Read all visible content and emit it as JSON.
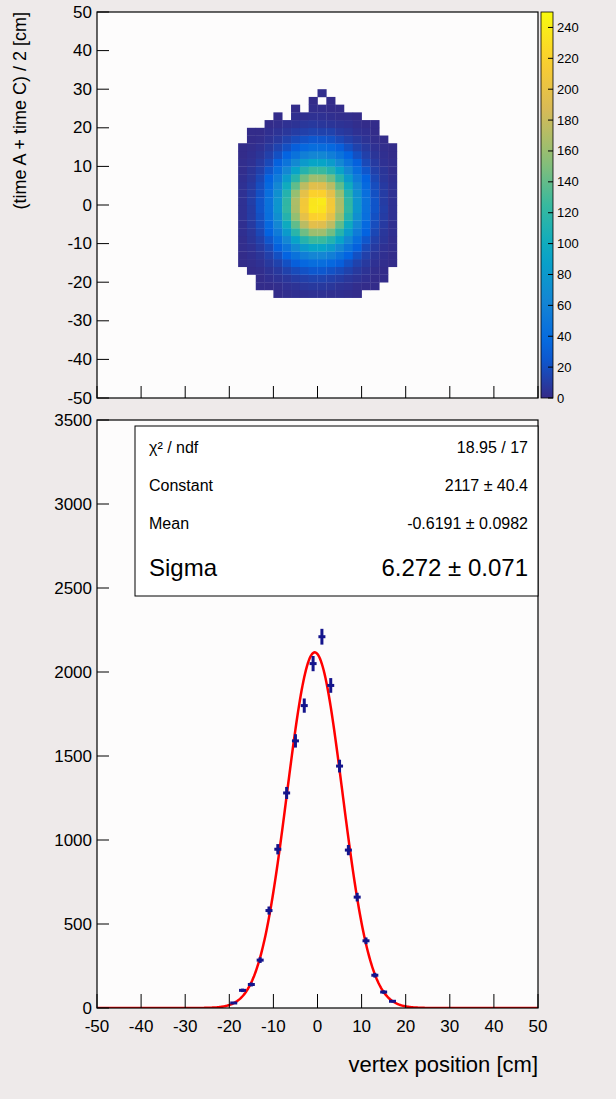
{
  "chart_data": [
    {
      "type": "heatmap",
      "ylabel": "(time A + time C) / 2 [cm]",
      "xlim": [
        -50,
        50
      ],
      "ylim": [
        -50,
        50
      ],
      "xticks": [
        -50,
        -40,
        -30,
        -20,
        -10,
        0,
        10,
        20,
        30,
        40,
        50
      ],
      "yticks": [
        -50,
        -40,
        -30,
        -20,
        -10,
        0,
        10,
        20,
        30,
        40,
        50
      ],
      "tick_labels": "y",
      "x_edges": [
        -18,
        -16,
        -14,
        -12,
        -10,
        -8,
        -6,
        -4,
        -2,
        0,
        2,
        4,
        6,
        8,
        10,
        12,
        14,
        16,
        18
      ],
      "y_edges": [
        -24,
        -22,
        -20,
        -18,
        -16,
        -14,
        -12,
        -10,
        -8,
        -6,
        -4,
        -2,
        0,
        2,
        4,
        6,
        8,
        10,
        12,
        14,
        16,
        18,
        20,
        22,
        24,
        26,
        28,
        30
      ],
      "counts": [
        [
          0,
          0,
          0,
          0,
          1,
          2,
          3,
          3,
          4,
          4,
          3,
          3,
          2,
          1,
          0,
          0,
          0,
          0
        ],
        [
          0,
          0,
          1,
          1,
          2,
          4,
          5,
          7,
          8,
          8,
          7,
          5,
          4,
          2,
          1,
          1,
          0,
          0
        ],
        [
          0,
          0,
          1,
          3,
          5,
          7,
          10,
          12,
          14,
          14,
          12,
          10,
          7,
          5,
          3,
          1,
          1,
          0
        ],
        [
          0,
          1,
          2,
          5,
          8,
          13,
          18,
          22,
          25,
          25,
          22,
          18,
          13,
          8,
          5,
          2,
          1,
          0
        ],
        [
          1,
          2,
          4,
          8,
          13,
          21,
          29,
          36,
          41,
          41,
          36,
          29,
          21,
          13,
          8,
          4,
          2,
          1
        ],
        [
          1,
          3,
          6,
          12,
          21,
          32,
          45,
          56,
          63,
          63,
          57,
          45,
          32,
          21,
          12,
          6,
          3,
          1
        ],
        [
          2,
          4,
          9,
          17,
          30,
          47,
          66,
          82,
          92,
          92,
          83,
          65,
          47,
          30,
          17,
          9,
          4,
          2
        ],
        [
          2,
          6,
          12,
          24,
          41,
          64,
          89,
          113,
          126,
          125,
          112,
          90,
          64,
          41,
          24,
          12,
          6,
          2
        ],
        [
          3,
          7,
          16,
          31,
          53,
          82,
          116,
          144,
          161,
          162,
          145,
          115,
          83,
          53,
          31,
          16,
          7,
          3
        ],
        [
          3,
          9,
          19,
          37,
          64,
          99,
          139,
          174,
          196,
          194,
          175,
          139,
          99,
          64,
          37,
          19,
          9,
          3
        ],
        [
          4,
          10,
          21,
          42,
          72,
          113,
          157,
          198,
          220,
          222,
          198,
          158,
          113,
          72,
          42,
          21,
          10,
          4
        ],
        [
          4,
          10,
          23,
          44,
          78,
          121,
          167,
          211,
          236,
          233,
          211,
          168,
          121,
          78,
          44,
          23,
          11,
          4
        ],
        [
          4,
          11,
          23,
          45,
          77,
          120,
          168,
          210,
          235,
          238,
          210,
          167,
          120,
          77,
          45,
          23,
          10,
          4
        ],
        [
          4,
          10,
          21,
          42,
          73,
          113,
          158,
          198,
          221,
          220,
          197,
          157,
          113,
          73,
          42,
          21,
          10,
          4
        ],
        [
          4,
          9,
          19,
          37,
          64,
          100,
          139,
          175,
          195,
          193,
          174,
          139,
          100,
          64,
          37,
          19,
          9,
          4
        ],
        [
          3,
          7,
          16,
          31,
          53,
          83,
          115,
          145,
          162,
          160,
          144,
          115,
          82,
          53,
          31,
          16,
          7,
          3
        ],
        [
          2,
          6,
          12,
          24,
          41,
          64,
          90,
          113,
          126,
          125,
          112,
          90,
          64,
          41,
          24,
          12,
          6,
          2
        ],
        [
          2,
          4,
          9,
          17,
          30,
          47,
          66,
          82,
          92,
          91,
          83,
          65,
          47,
          30,
          17,
          9,
          4,
          2
        ],
        [
          1,
          3,
          6,
          12,
          21,
          32,
          45,
          57,
          63,
          64,
          56,
          45,
          32,
          21,
          12,
          6,
          3,
          1
        ],
        [
          1,
          2,
          4,
          8,
          14,
          21,
          29,
          36,
          41,
          40,
          37,
          29,
          21,
          13,
          8,
          4,
          2,
          1
        ],
        [
          0,
          1,
          2,
          5,
          8,
          13,
          18,
          22,
          25,
          24,
          22,
          17,
          12,
          8,
          5,
          2,
          1,
          0
        ],
        [
          0,
          1,
          1,
          3,
          5,
          7,
          10,
          12,
          14,
          13,
          13,
          9,
          7,
          4,
          3,
          1,
          0,
          0
        ],
        [
          0,
          0,
          0,
          1,
          2,
          4,
          5,
          7,
          8,
          7,
          6,
          5,
          4,
          2,
          1,
          1,
          0,
          0
        ],
        [
          0,
          0,
          0,
          0,
          1,
          0,
          3,
          3,
          4,
          4,
          3,
          2,
          2,
          1,
          0,
          0,
          0,
          0
        ],
        [
          0,
          0,
          0,
          0,
          0,
          0,
          1,
          0,
          2,
          2,
          1,
          1,
          0,
          0,
          0,
          0,
          0,
          0
        ],
        [
          0,
          0,
          0,
          0,
          0,
          0,
          0,
          0,
          1,
          0,
          1,
          0,
          0,
          0,
          0,
          0,
          0,
          0
        ],
        [
          0,
          0,
          0,
          0,
          0,
          0,
          0,
          0,
          0,
          2,
          0,
          0,
          0,
          0,
          0,
          0,
          0,
          0
        ]
      ],
      "colorbar": {
        "lim": [
          0,
          250
        ],
        "ticks": [
          0,
          20,
          40,
          60,
          80,
          100,
          120,
          140,
          160,
          180,
          200,
          220,
          240
        ]
      }
    },
    {
      "type": "histogram",
      "xlabel": "vertex position [cm]",
      "xlim": [
        -50,
        50
      ],
      "ylim": [
        0,
        3500
      ],
      "xticks": [
        -50,
        -40,
        -30,
        -20,
        -10,
        0,
        10,
        20,
        30,
        40,
        50
      ],
      "yticks": [
        0,
        500,
        1000,
        1500,
        2000,
        2500,
        3000,
        3500
      ],
      "bins": [
        -20,
        -18,
        -16,
        -14,
        -12,
        -10,
        -8,
        -6,
        -4,
        -2,
        0,
        2,
        4,
        6,
        8,
        10,
        12,
        14,
        16,
        18
      ],
      "values": [
        30,
        105,
        140,
        285,
        580,
        945,
        1280,
        1590,
        1800,
        2050,
        2210,
        1920,
        1440,
        940,
        660,
        400,
        195,
        95,
        40
      ],
      "errors": [
        5.5,
        10.2,
        11.8,
        16.9,
        24.1,
        30.7,
        35.8,
        39.9,
        42.4,
        45.3,
        47,
        43.8,
        37.9,
        30.7,
        25.7,
        20,
        14,
        9.7,
        6.3
      ],
      "color": "#14148c",
      "marker": "cross",
      "fit": {
        "constant": 2117,
        "mean": -0.6191,
        "sigma": 6.272,
        "color": "#ff0000",
        "line_style": "solid"
      },
      "stats": [
        {
          "label": "χ² / ndf",
          "value": "18.95 / 17"
        },
        {
          "label": "Constant",
          "value": "2117 ± 40.4"
        },
        {
          "label": "Mean",
          "value": "-0.6191 ± 0.0982"
        },
        {
          "label": "Sigma",
          "value": "6.272 ± 0.071"
        }
      ]
    }
  ]
}
